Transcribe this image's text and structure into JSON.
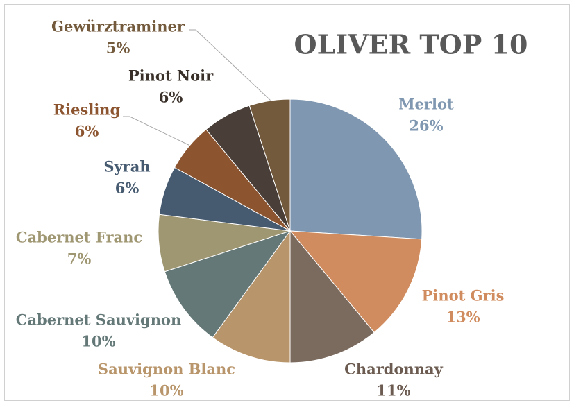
{
  "chart_data": {
    "type": "pie",
    "title": "OLIVER TOP 10",
    "categories": [
      "Merlot",
      "Pinot Gris",
      "Chardonnay",
      "Sauvignon Blanc",
      "Cabernet Sauvignon",
      "Cabernet Franc",
      "Syrah",
      "Riesling",
      "Pinot Noir",
      "Gewürztraminer"
    ],
    "values": [
      26,
      13,
      11,
      10,
      10,
      7,
      6,
      6,
      6,
      5
    ],
    "value_labels": [
      "26%",
      "13%",
      "11%",
      "10%",
      "10%",
      "7%",
      "6%",
      "6%",
      "6%",
      "5%"
    ],
    "colors": [
      "#7f97b0",
      "#d08c5e",
      "#7b6a5e",
      "#b8956a",
      "#647878",
      "#9f9672",
      "#465a70",
      "#8c5530",
      "#4a3f38",
      "#735a3c"
    ],
    "label_colors": [
      "#7f97b0",
      "#d08c5e",
      "#6b5b50",
      "#b8956a",
      "#647878",
      "#9f9672",
      "#465a70",
      "#8c5530",
      "#3a302a",
      "#735a3c"
    ]
  }
}
